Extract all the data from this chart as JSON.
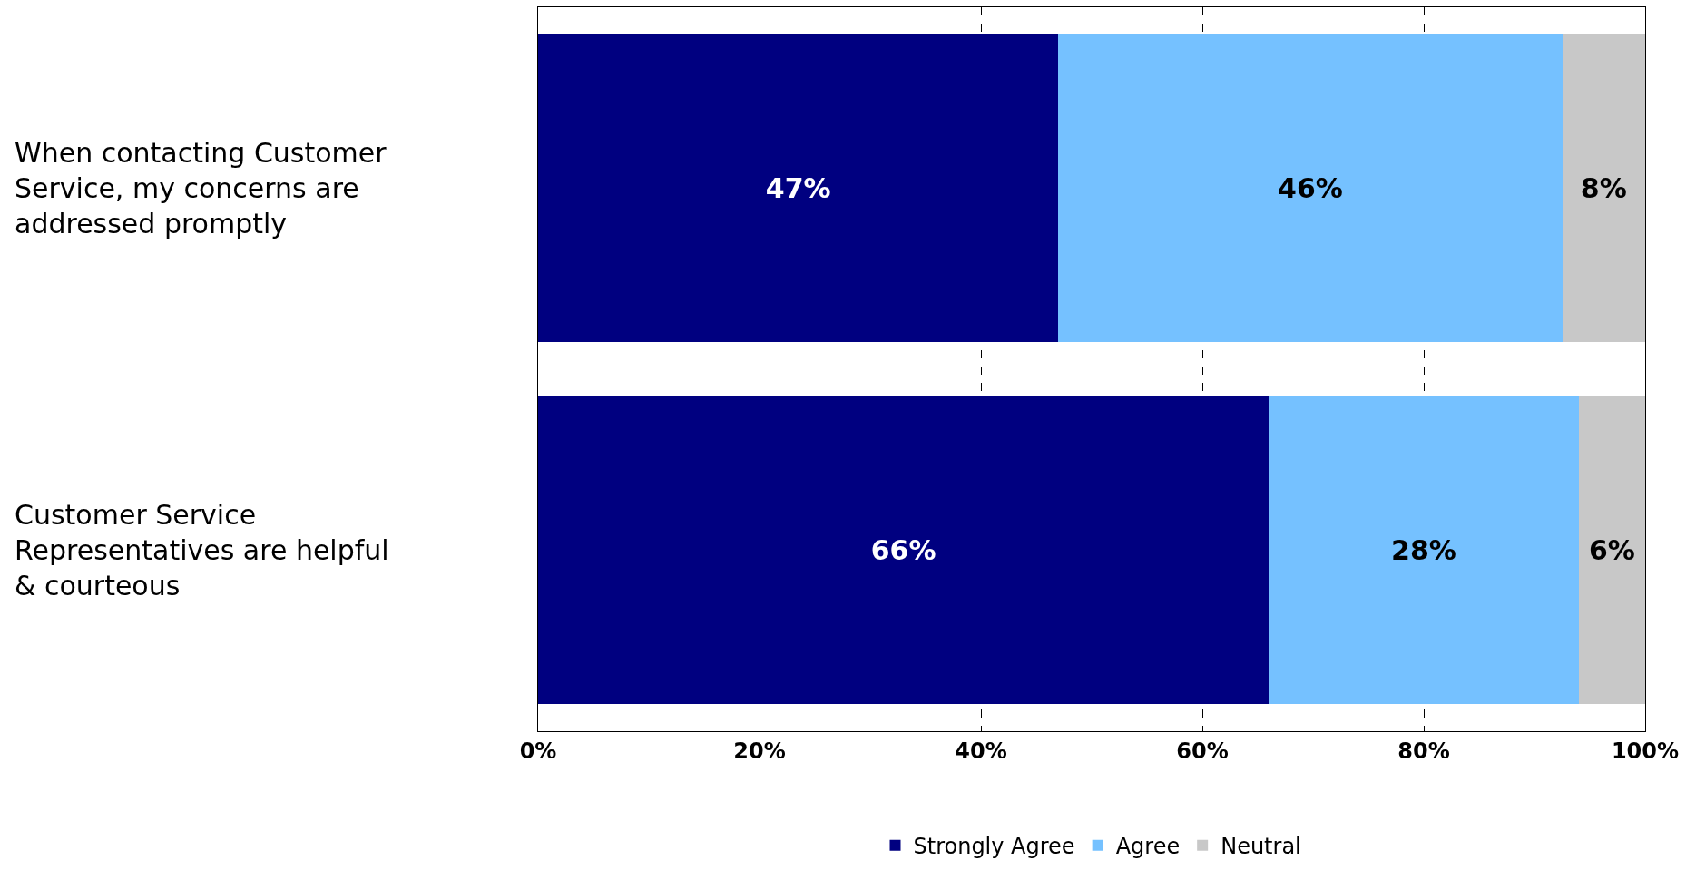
{
  "chart_data": {
    "type": "bar",
    "orientation": "horizontal",
    "stacked": true,
    "categories": [
      "When contacting Customer Service, my concerns are addressed promptly",
      "Customer Service Representatives are helpful & courteous"
    ],
    "series": [
      {
        "name": "Strongly Agree",
        "color": "#000080",
        "values": [
          47,
          66
        ],
        "value_labels": [
          "47%",
          "66%"
        ]
      },
      {
        "name": "Agree",
        "color": "#75c1ff",
        "values": [
          45.5,
          28
        ],
        "value_labels": [
          "46%",
          "28%"
        ]
      },
      {
        "name": "Neutral",
        "color": "#c8c8c8",
        "values": [
          7.5,
          6
        ],
        "value_labels": [
          "8%",
          "6%"
        ]
      }
    ],
    "xlim": [
      0,
      100
    ],
    "xticks": [
      {
        "value": 0,
        "label": "0%"
      },
      {
        "value": 20,
        "label": "20%"
      },
      {
        "value": 40,
        "label": "40%"
      },
      {
        "value": 60,
        "label": "60%"
      },
      {
        "value": 80,
        "label": "80%"
      },
      {
        "value": 100,
        "label": "100%"
      }
    ],
    "grid": "x",
    "line_style": "dashed",
    "legend": "bottom"
  }
}
